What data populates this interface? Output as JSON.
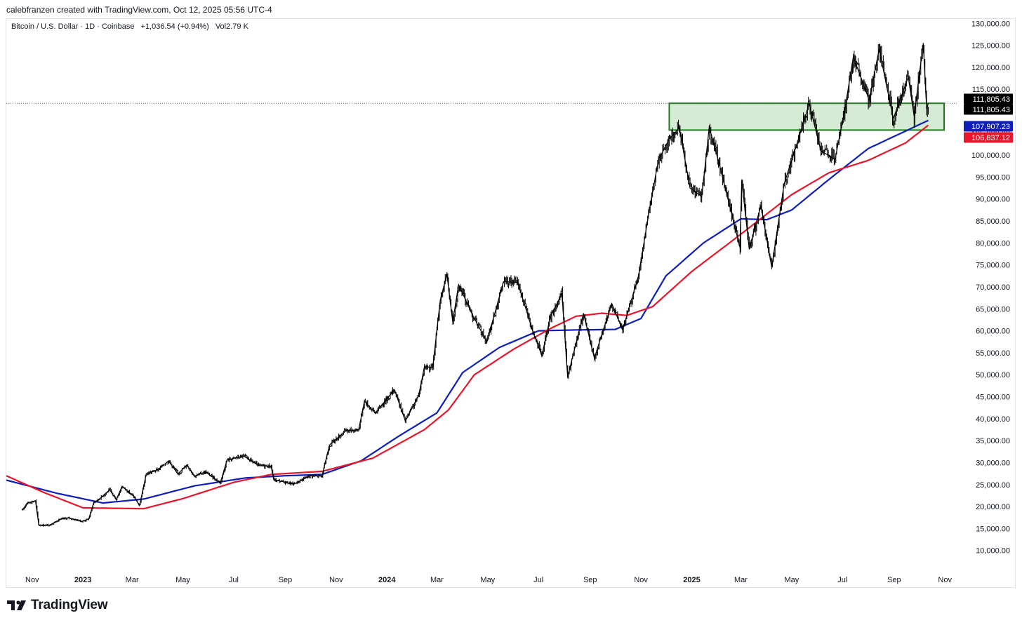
{
  "header": {
    "credit": "calebfranzen created with TradingView.com, Oct 12, 2025 05:56 UTC-4",
    "symbol_name": "Bitcoin / U.S. Dollar · 1D · Coinbase",
    "change": "+1,036.54 (+0.94%)",
    "volume": "Vol2.79 K"
  },
  "footer": {
    "brand": "TradingView",
    "logo_icon": "tradingview-logo-icon"
  },
  "colors": {
    "price": "#000000",
    "ma_blue": "#0d1fb8",
    "ma_red": "#e8152b",
    "zone_fill": "#cfe8cb",
    "zone_border": "#1e7b1e"
  },
  "chart_data": {
    "type": "line",
    "title": "Bitcoin / U.S. Dollar · 1D · Coinbase",
    "xlabel": "",
    "ylabel": "",
    "ylim": [
      5000,
      131000
    ],
    "x_ticks": [
      {
        "label": "Nov",
        "date": "2022-11-01",
        "bold": false
      },
      {
        "label": "2023",
        "date": "2023-01-01",
        "bold": true
      },
      {
        "label": "Mar",
        "date": "2023-03-01",
        "bold": false
      },
      {
        "label": "May",
        "date": "2023-05-01",
        "bold": false
      },
      {
        "label": "Jul",
        "date": "2023-07-01",
        "bold": false
      },
      {
        "label": "Sep",
        "date": "2023-09-01",
        "bold": false
      },
      {
        "label": "Nov",
        "date": "2023-11-01",
        "bold": false
      },
      {
        "label": "2024",
        "date": "2024-01-01",
        "bold": true
      },
      {
        "label": "Mar",
        "date": "2024-03-01",
        "bold": false
      },
      {
        "label": "May",
        "date": "2024-05-01",
        "bold": false
      },
      {
        "label": "Jul",
        "date": "2024-07-01",
        "bold": false
      },
      {
        "label": "Sep",
        "date": "2024-09-01",
        "bold": false
      },
      {
        "label": "Nov",
        "date": "2024-11-01",
        "bold": false
      },
      {
        "label": "2025",
        "date": "2025-01-01",
        "bold": true
      },
      {
        "label": "Mar",
        "date": "2025-03-01",
        "bold": false
      },
      {
        "label": "May",
        "date": "2025-05-01",
        "bold": false
      },
      {
        "label": "Jul",
        "date": "2025-07-01",
        "bold": false
      },
      {
        "label": "Sep",
        "date": "2025-09-01",
        "bold": false
      },
      {
        "label": "Nov",
        "date": "2025-11-01",
        "bold": false
      }
    ],
    "y_ticks": [
      {
        "value": 10000,
        "label": "10,000.00"
      },
      {
        "value": 15000,
        "label": "15,000.00"
      },
      {
        "value": 20000,
        "label": "20,000.00"
      },
      {
        "value": 25000,
        "label": "25,000.00"
      },
      {
        "value": 30000,
        "label": "30,000.00"
      },
      {
        "value": 35000,
        "label": "35,000.00"
      },
      {
        "value": 40000,
        "label": "40,000.00"
      },
      {
        "value": 45000,
        "label": "45,000.00"
      },
      {
        "value": 50000,
        "label": "50,000.00"
      },
      {
        "value": 55000,
        "label": "55,000.00"
      },
      {
        "value": 60000,
        "label": "60,000.00"
      },
      {
        "value": 65000,
        "label": "65,000.00"
      },
      {
        "value": 70000,
        "label": "70,000.00"
      },
      {
        "value": 75000,
        "label": "75,000.00"
      },
      {
        "value": 80000,
        "label": "80,000.00"
      },
      {
        "value": 85000,
        "label": "85,000.00"
      },
      {
        "value": 90000,
        "label": "90,000.00"
      },
      {
        "value": 95000,
        "label": "95,000.00"
      },
      {
        "value": 100000,
        "label": "100,000.00"
      },
      {
        "value": 105000,
        "label": "105,000.00"
      },
      {
        "value": 110000,
        "label": "110,000.00"
      },
      {
        "value": 115000,
        "label": "115,000.00"
      },
      {
        "value": 120000,
        "label": "120,000.00"
      },
      {
        "value": 125000,
        "label": "125,000.00"
      },
      {
        "value": 130000,
        "label": "130,000.00"
      }
    ],
    "price_tags": [
      {
        "value": 111805.43,
        "label": "111,805.43",
        "color": "#000000"
      },
      {
        "value": 111805.43,
        "label": "111,805.43",
        "color": "#000000"
      },
      {
        "value": 107907.23,
        "label": "107,907.23",
        "color": "#0d1fb8"
      },
      {
        "value": 106837.12,
        "label": "106,837.12",
        "color": "#e8152b"
      }
    ],
    "last_price_line": 111805.43,
    "zone": {
      "start": "2024-12-05",
      "end": "2025-10-31",
      "low": 105700,
      "high": 111800
    },
    "series": [
      {
        "color": "#000000",
        "style": "candles-line",
        "points": [
          [
            "2022-10-20",
            19100
          ],
          [
            "2022-10-26",
            20800
          ],
          [
            "2022-11-05",
            21300
          ],
          [
            "2022-11-09",
            15800
          ],
          [
            "2022-11-21",
            15700
          ],
          [
            "2022-12-05",
            17100
          ],
          [
            "2022-12-15",
            17400
          ],
          [
            "2022-12-31",
            16600
          ],
          [
            "2023-01-08",
            17200
          ],
          [
            "2023-01-14",
            20900
          ],
          [
            "2023-01-20",
            21600
          ],
          [
            "2023-02-02",
            23800
          ],
          [
            "2023-02-10",
            21600
          ],
          [
            "2023-02-17",
            24600
          ],
          [
            "2023-03-03",
            22300
          ],
          [
            "2023-03-10",
            20200
          ],
          [
            "2023-03-18",
            27400
          ],
          [
            "2023-04-01",
            28400
          ],
          [
            "2023-04-14",
            30400
          ],
          [
            "2023-04-25",
            27400
          ],
          [
            "2023-05-06",
            29500
          ],
          [
            "2023-05-15",
            26900
          ],
          [
            "2023-05-28",
            27900
          ],
          [
            "2023-06-15",
            25400
          ],
          [
            "2023-06-23",
            30600
          ],
          [
            "2023-07-13",
            31500
          ],
          [
            "2023-07-31",
            29300
          ],
          [
            "2023-08-15",
            29200
          ],
          [
            "2023-08-18",
            26100
          ],
          [
            "2023-09-11",
            25100
          ],
          [
            "2023-09-30",
            27000
          ],
          [
            "2023-10-15",
            26900
          ],
          [
            "2023-10-24",
            34000
          ],
          [
            "2023-11-12",
            37200
          ],
          [
            "2023-11-28",
            37500
          ],
          [
            "2023-12-05",
            44000
          ],
          [
            "2023-12-18",
            41300
          ],
          [
            "2024-01-10",
            46600
          ],
          [
            "2024-01-23",
            39500
          ],
          [
            "2024-02-08",
            45200
          ],
          [
            "2024-02-15",
            51800
          ],
          [
            "2024-02-25",
            51700
          ],
          [
            "2024-03-05",
            67000
          ],
          [
            "2024-03-13",
            72800
          ],
          [
            "2024-03-20",
            62000
          ],
          [
            "2024-03-27",
            70500
          ],
          [
            "2024-04-13",
            63500
          ],
          [
            "2024-04-30",
            57500
          ],
          [
            "2024-05-20",
            71200
          ],
          [
            "2024-06-06",
            71000
          ],
          [
            "2024-06-24",
            60000
          ],
          [
            "2024-07-05",
            54300
          ],
          [
            "2024-07-15",
            63000
          ],
          [
            "2024-07-29",
            68500
          ],
          [
            "2024-08-05",
            49500
          ],
          [
            "2024-08-24",
            64000
          ],
          [
            "2024-09-06",
            53800
          ],
          [
            "2024-09-27",
            66200
          ],
          [
            "2024-10-10",
            60200
          ],
          [
            "2024-10-29",
            72500
          ],
          [
            "2024-11-12",
            88500
          ],
          [
            "2024-11-22",
            98900
          ],
          [
            "2024-12-05",
            103700
          ],
          [
            "2024-12-17",
            106200
          ],
          [
            "2024-12-30",
            92500
          ],
          [
            "2025-01-13",
            90500
          ],
          [
            "2025-01-22",
            106400
          ],
          [
            "2025-02-05",
            96500
          ],
          [
            "2025-02-28",
            78900
          ],
          [
            "2025-03-02",
            94200
          ],
          [
            "2025-03-11",
            78600
          ],
          [
            "2025-03-25",
            88500
          ],
          [
            "2025-04-07",
            74500
          ],
          [
            "2025-04-22",
            93500
          ],
          [
            "2025-05-08",
            103000
          ],
          [
            "2025-05-22",
            111700
          ],
          [
            "2025-06-05",
            101000
          ],
          [
            "2025-06-22",
            99000
          ],
          [
            "2025-07-03",
            109500
          ],
          [
            "2025-07-14",
            122400
          ],
          [
            "2025-08-02",
            112500
          ],
          [
            "2025-08-14",
            124100
          ],
          [
            "2025-08-31",
            108300
          ],
          [
            "2025-09-18",
            117800
          ],
          [
            "2025-09-25",
            108900
          ],
          [
            "2025-10-06",
            125500
          ],
          [
            "2025-10-10",
            110500
          ],
          [
            "2025-10-12",
            111800
          ]
        ]
      },
      {
        "color": "#0d1fb8",
        "points": [
          [
            "2022-10-01",
            26000
          ],
          [
            "2022-12-01",
            23000
          ],
          [
            "2023-01-25",
            20800
          ],
          [
            "2023-03-15",
            21700
          ],
          [
            "2023-05-15",
            24700
          ],
          [
            "2023-07-15",
            26500
          ],
          [
            "2023-09-01",
            27000
          ],
          [
            "2023-10-15",
            27300
          ],
          [
            "2023-12-01",
            30400
          ],
          [
            "2024-01-15",
            36000
          ],
          [
            "2024-03-01",
            41300
          ],
          [
            "2024-04-01",
            50500
          ],
          [
            "2024-05-15",
            56200
          ],
          [
            "2024-07-01",
            60000
          ],
          [
            "2024-08-15",
            60200
          ],
          [
            "2024-10-01",
            60300
          ],
          [
            "2024-11-01",
            62800
          ],
          [
            "2024-12-01",
            72500
          ],
          [
            "2025-01-15",
            80000
          ],
          [
            "2025-03-01",
            85500
          ],
          [
            "2025-04-01",
            85300
          ],
          [
            "2025-05-01",
            87500
          ],
          [
            "2025-06-15",
            94500
          ],
          [
            "2025-08-01",
            101500
          ],
          [
            "2025-09-15",
            105500
          ],
          [
            "2025-10-12",
            107900
          ]
        ]
      },
      {
        "color": "#e8152b",
        "points": [
          [
            "2022-10-01",
            27000
          ],
          [
            "2022-11-15",
            23200
          ],
          [
            "2023-01-01",
            19700
          ],
          [
            "2023-03-15",
            19500
          ],
          [
            "2023-05-01",
            21800
          ],
          [
            "2023-07-01",
            25500
          ],
          [
            "2023-08-15",
            27300
          ],
          [
            "2023-10-15",
            28000
          ],
          [
            "2023-12-15",
            31000
          ],
          [
            "2024-02-15",
            37500
          ],
          [
            "2024-03-15",
            42000
          ],
          [
            "2024-04-15",
            50000
          ],
          [
            "2024-06-01",
            55800
          ],
          [
            "2024-07-15",
            60500
          ],
          [
            "2024-08-15",
            63300
          ],
          [
            "2024-09-15",
            64000
          ],
          [
            "2024-10-15",
            63500
          ],
          [
            "2024-11-15",
            65500
          ],
          [
            "2025-01-01",
            73500
          ],
          [
            "2025-03-01",
            82000
          ],
          [
            "2025-05-01",
            91000
          ],
          [
            "2025-06-15",
            96000
          ],
          [
            "2025-08-01",
            98800
          ],
          [
            "2025-09-15",
            102800
          ],
          [
            "2025-10-12",
            106800
          ]
        ]
      }
    ]
  }
}
